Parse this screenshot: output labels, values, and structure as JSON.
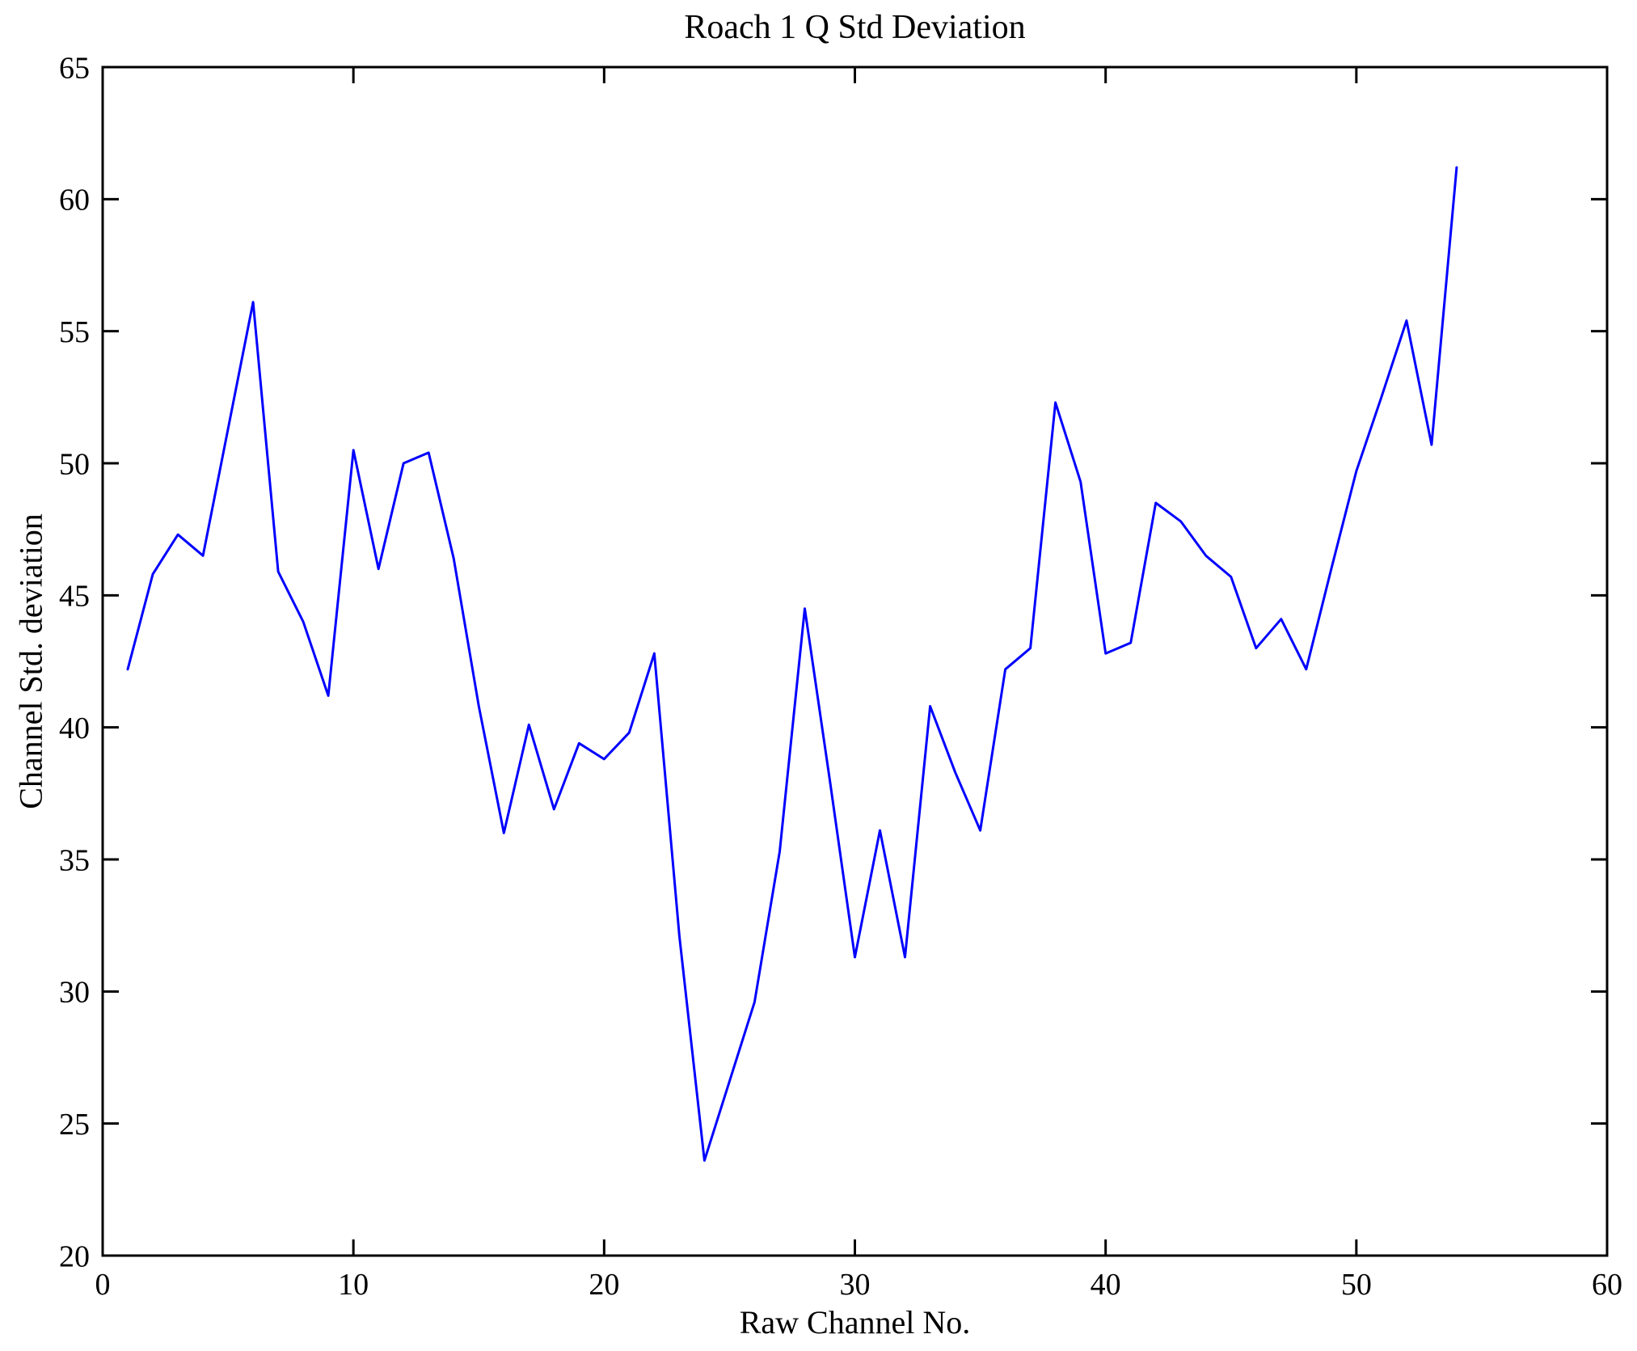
{
  "chart_data": {
    "type": "line",
    "title": "Roach 1 Q Std Deviation",
    "xlabel": "Raw Channel No.",
    "ylabel": "Channel Std. deviation",
    "xlim": [
      0,
      60
    ],
    "ylim": [
      20,
      65
    ],
    "xticks": [
      0,
      10,
      20,
      30,
      40,
      50,
      60
    ],
    "yticks": [
      20,
      25,
      30,
      35,
      40,
      45,
      50,
      55,
      60,
      65
    ],
    "grid": false,
    "box": true,
    "legend": null,
    "line_color": "#0000FF",
    "axis_color": "#000000",
    "x": [
      1,
      2,
      3,
      4,
      5,
      6,
      7,
      8,
      9,
      10,
      11,
      12,
      13,
      14,
      15,
      16,
      17,
      18,
      19,
      20,
      21,
      22,
      23,
      24,
      25,
      26,
      27,
      28,
      29,
      30,
      31,
      32,
      33,
      34,
      35,
      36,
      37,
      38,
      39,
      40,
      41,
      42,
      43,
      44,
      45,
      46,
      47,
      48,
      49,
      50,
      51,
      52,
      53,
      54
    ],
    "y": [
      42.2,
      45.8,
      47.3,
      46.5,
      51.3,
      56.1,
      45.9,
      44.0,
      41.2,
      50.5,
      46.0,
      50.0,
      50.4,
      46.4,
      40.8,
      36.0,
      40.1,
      36.9,
      39.4,
      38.8,
      39.8,
      42.8,
      32.1,
      23.6,
      26.6,
      29.6,
      35.3,
      44.5,
      38.0,
      31.3,
      36.1,
      31.3,
      40.8,
      38.3,
      36.1,
      42.2,
      43.0,
      52.3,
      49.3,
      42.8,
      43.2,
      48.5,
      47.8,
      46.5,
      45.7,
      43.0,
      44.1,
      42.2,
      46.0,
      49.7,
      52.5,
      55.4,
      50.7,
      61.2
    ]
  }
}
